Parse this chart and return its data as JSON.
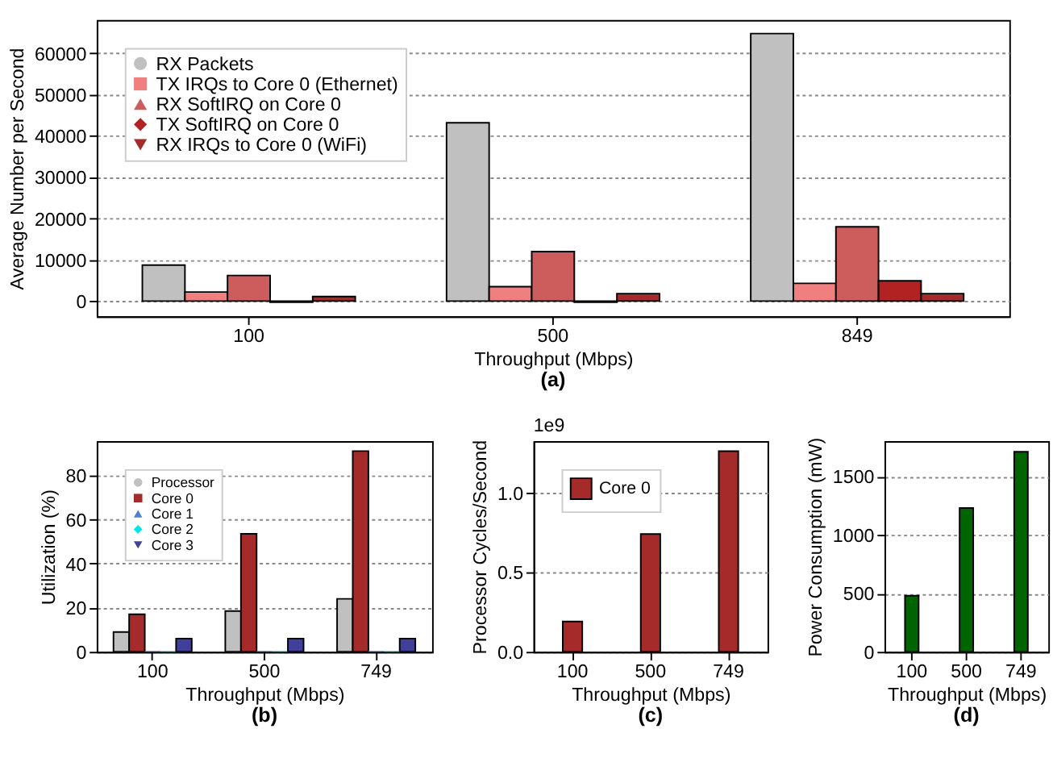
{
  "chart_data": [
    {
      "type": "bar",
      "title": "(a)",
      "xlabel": "Throughput (Mbps)",
      "ylabel": "Average Number per Second",
      "categories": [
        "100",
        "500",
        "849"
      ],
      "ylim": [
        -3700,
        68100
      ],
      "yticks": [
        0,
        10000,
        20000,
        30000,
        40000,
        50000,
        60000
      ],
      "grid": "y",
      "legend": "top left",
      "series": [
        {
          "name": "RX Packets",
          "color": "#c0c0c0",
          "marker": "circle",
          "values": [
            8700,
            43200,
            64800
          ]
        },
        {
          "name": "TX IRQs to Core 0 (Ethernet)",
          "color": "#f08080",
          "marker": "square",
          "values": [
            2200,
            3500,
            4300
          ]
        },
        {
          "name": "RX SoftIRQ on Core 0",
          "color": "#cd5c5c",
          "marker": "triangle",
          "values": [
            6200,
            12000,
            18000
          ]
        },
        {
          "name": "TX SoftIRQ on Core 0",
          "color": "#b22222",
          "marker": "diamond",
          "values": [
            -300,
            -300,
            4900
          ]
        },
        {
          "name": "RX IRQs to Core 0 (WiFi)",
          "color": "#a52a2a",
          "marker": "triangle-down",
          "values": [
            1100,
            1800,
            1800
          ]
        }
      ]
    },
    {
      "type": "bar",
      "title": "(b)",
      "xlabel": "Throughput (Mbps)",
      "ylabel": "Utilization (%)",
      "categories": [
        "100",
        "500",
        "749"
      ],
      "ylim": [
        0,
        95.5
      ],
      "yticks": [
        0,
        20,
        40,
        60,
        80
      ],
      "grid": "y",
      "legend": "top left",
      "series": [
        {
          "name": "Processor",
          "color": "#c0c0c0",
          "marker": "circle",
          "values": [
            9,
            18.5,
            24
          ]
        },
        {
          "name": "Core 0",
          "color": "#a52a2a",
          "marker": "square",
          "values": [
            17,
            53.5,
            91
          ]
        },
        {
          "name": "Core 1",
          "color": "#4f7fd0",
          "marker": "triangle",
          "values": [
            0,
            0,
            0
          ]
        },
        {
          "name": "Core 2",
          "color": "#00e5e5",
          "marker": "diamond",
          "values": [
            0,
            0,
            0
          ]
        },
        {
          "name": "Core 3",
          "color": "#40409a",
          "marker": "triangle-down",
          "values": [
            6,
            6,
            6
          ]
        }
      ]
    },
    {
      "type": "bar",
      "title": "(c)",
      "xlabel": "Throughput (Mbps)",
      "ylabel": "Processor Cycles/Second",
      "annotations": [
        "1e9"
      ],
      "categories": [
        "100",
        "500",
        "749"
      ],
      "ylim": [
        0,
        1.323
      ],
      "yticks": [
        {
          "value": 0,
          "label": "0.0"
        },
        0.5,
        {
          "value": 1,
          "label": "1.0"
        }
      ],
      "grid": "y",
      "legend": "top left",
      "series": [
        {
          "name": "Core 0",
          "color": "#a52a2a",
          "values": [
            0.19,
            0.74,
            1.26
          ]
        }
      ]
    },
    {
      "type": "bar",
      "title": "(d)",
      "xlabel": "Throughput (Mbps)",
      "ylabel": "Power Consumption (mW)",
      "categories": [
        "100",
        "500",
        "749"
      ],
      "ylim": [
        0,
        1801
      ],
      "yticks": [
        0,
        500,
        1000,
        1500
      ],
      "grid": "y",
      "series": [
        {
          "color": "#006400",
          "values": [
            480,
            1230,
            1710
          ]
        }
      ]
    }
  ]
}
